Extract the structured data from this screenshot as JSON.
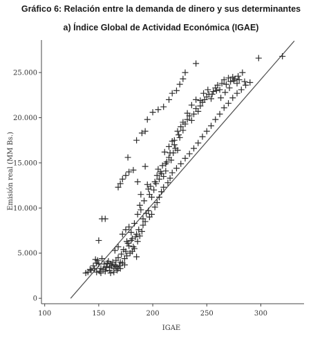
{
  "titles": {
    "main": "Gráfico 6: Relación entre la demanda de dinero y sus determinantes",
    "sub": "a) Índice Global de Actividad Económica (IGAE)"
  },
  "colors": {
    "marker": "#2b2b2b",
    "line": "#555555",
    "axis": "#444444",
    "text": "#333333"
  },
  "chart_data": {
    "type": "scatter",
    "xlabel": "IGAE",
    "ylabel": "Emisión real (MM Bs.)",
    "xlim": [
      97,
      340
    ],
    "ylim": [
      -600,
      28600
    ],
    "x_ticks": [
      100,
      150,
      200,
      250,
      300
    ],
    "y_ticks": [
      0,
      5000,
      10000,
      15000,
      20000,
      25000
    ],
    "x_tick_labels": [
      "100",
      "150",
      "200",
      "250",
      "300"
    ],
    "y_tick_labels": [
      "0",
      "5.000",
      "10.000",
      "15.000",
      "20.000",
      "25.000"
    ],
    "grid": false,
    "legend": "none",
    "marker": "plus",
    "fit_line": {
      "points": [
        [
          124,
          0
        ],
        [
          331,
          28500
        ]
      ]
    },
    "points": [
      [
        138,
        2800
      ],
      [
        140,
        2900
      ],
      [
        142,
        3200
      ],
      [
        143,
        3100
      ],
      [
        145,
        3600
      ],
      [
        146,
        3300
      ],
      [
        148,
        3900
      ],
      [
        147,
        4300
      ],
      [
        149,
        4200
      ],
      [
        150,
        3800
      ],
      [
        151,
        3000
      ],
      [
        152,
        3300
      ],
      [
        153,
        4400
      ],
      [
        154,
        3200
      ],
      [
        155,
        3800
      ],
      [
        156,
        3000
      ],
      [
        157,
        3500
      ],
      [
        158,
        3900
      ],
      [
        159,
        4100
      ],
      [
        160,
        3400
      ],
      [
        161,
        2800
      ],
      [
        162,
        3600
      ],
      [
        163,
        4000
      ],
      [
        164,
        3300
      ],
      [
        165,
        3700
      ],
      [
        166,
        4200
      ],
      [
        167,
        3100
      ],
      [
        168,
        4500
      ],
      [
        169,
        3600
      ],
      [
        170,
        3300
      ],
      [
        172,
        3900
      ],
      [
        174,
        3700
      ],
      [
        171,
        4900
      ],
      [
        173,
        5400
      ],
      [
        168,
        5700
      ],
      [
        165,
        5300
      ],
      [
        175,
        5200
      ],
      [
        176,
        6300
      ],
      [
        178,
        5800
      ],
      [
        180,
        6400
      ],
      [
        182,
        5700
      ],
      [
        184,
        6800
      ],
      [
        186,
        6300
      ],
      [
        188,
        6900
      ],
      [
        185,
        4600
      ],
      [
        190,
        7400
      ],
      [
        178,
        7900
      ],
      [
        183,
        8300
      ],
      [
        180,
        7300
      ],
      [
        175,
        7600
      ],
      [
        172,
        7100
      ],
      [
        150,
        6400
      ],
      [
        153,
        8800
      ],
      [
        156,
        8800
      ],
      [
        186,
        9300
      ],
      [
        189,
        9800
      ],
      [
        191,
        8800
      ],
      [
        194,
        9400
      ],
      [
        196,
        9700
      ],
      [
        188,
        10300
      ],
      [
        192,
        10800
      ],
      [
        197,
        11500
      ],
      [
        199,
        11200
      ],
      [
        201,
        12000
      ],
      [
        195,
        12600
      ],
      [
        198,
        12400
      ],
      [
        202,
        12900
      ],
      [
        204,
        13600
      ],
      [
        206,
        13200
      ],
      [
        208,
        13800
      ],
      [
        210,
        13500
      ],
      [
        212,
        14100
      ],
      [
        205,
        14300
      ],
      [
        209,
        14700
      ],
      [
        213,
        15100
      ],
      [
        215,
        15600
      ],
      [
        217,
        15300
      ],
      [
        211,
        16200
      ],
      [
        219,
        16100
      ],
      [
        221,
        16600
      ],
      [
        223,
        16400
      ],
      [
        215,
        16800
      ],
      [
        218,
        17400
      ],
      [
        220,
        17000
      ],
      [
        225,
        17800
      ],
      [
        223,
        18500
      ],
      [
        226,
        19000
      ],
      [
        228,
        18600
      ],
      [
        230,
        19300
      ],
      [
        232,
        19800
      ],
      [
        234,
        20200
      ],
      [
        236,
        19700
      ],
      [
        238,
        20400
      ],
      [
        240,
        21000
      ],
      [
        242,
        20700
      ],
      [
        244,
        21300
      ],
      [
        246,
        21700
      ],
      [
        248,
        22000
      ],
      [
        250,
        22300
      ],
      [
        252,
        22600
      ],
      [
        254,
        22100
      ],
      [
        256,
        22900
      ],
      [
        258,
        23300
      ],
      [
        260,
        23600
      ],
      [
        262,
        23100
      ],
      [
        264,
        23800
      ],
      [
        266,
        24200
      ],
      [
        268,
        23700
      ],
      [
        270,
        24400
      ],
      [
        272,
        24000
      ],
      [
        274,
        24500
      ],
      [
        276,
        24300
      ],
      [
        278,
        23800
      ],
      [
        280,
        24200
      ],
      [
        283,
        25000
      ],
      [
        285,
        24000
      ],
      [
        290,
        23900
      ],
      [
        298,
        26600
      ],
      [
        320,
        26800
      ],
      [
        240,
        26000
      ],
      [
        230,
        25000
      ],
      [
        228,
        24300
      ],
      [
        225,
        23700
      ],
      [
        222,
        23000
      ],
      [
        218,
        22700
      ],
      [
        215,
        22000
      ],
      [
        210,
        21200
      ],
      [
        205,
        20900
      ],
      [
        200,
        20600
      ],
      [
        195,
        19800
      ],
      [
        190,
        18300
      ],
      [
        193,
        18500
      ],
      [
        185,
        17500
      ],
      [
        182,
        14200
      ],
      [
        178,
        14000
      ],
      [
        175,
        13600
      ],
      [
        172,
        13200
      ],
      [
        170,
        12700
      ],
      [
        168,
        12300
      ],
      [
        177,
        15600
      ],
      [
        186,
        12900
      ],
      [
        193,
        14600
      ],
      [
        189,
        11500
      ],
      [
        196,
        12100
      ],
      [
        203,
        12700
      ],
      [
        207,
        14000
      ],
      [
        212,
        14900
      ],
      [
        216,
        16100
      ],
      [
        220,
        17500
      ],
      [
        224,
        18100
      ],
      [
        228,
        19500
      ],
      [
        232,
        20500
      ],
      [
        236,
        21400
      ],
      [
        240,
        22000
      ],
      [
        244,
        21900
      ],
      [
        247,
        22700
      ],
      [
        251,
        23100
      ],
      [
        255,
        22600
      ],
      [
        259,
        23000
      ],
      [
        263,
        22200
      ],
      [
        267,
        22800
      ],
      [
        271,
        23300
      ],
      [
        275,
        24100
      ],
      [
        279,
        24600
      ],
      [
        148,
        2900
      ],
      [
        152,
        2800
      ],
      [
        156,
        3000
      ],
      [
        160,
        3100
      ],
      [
        164,
        2900
      ],
      [
        168,
        3300
      ],
      [
        157,
        3400
      ],
      [
        161,
        3800
      ],
      [
        166,
        3500
      ],
      [
        170,
        4000
      ],
      [
        174,
        4400
      ],
      [
        176,
        4700
      ],
      [
        179,
        5000
      ],
      [
        181,
        5200
      ],
      [
        183,
        5500
      ],
      [
        177,
        6100
      ],
      [
        181,
        6600
      ],
      [
        185,
        7100
      ],
      [
        187,
        7600
      ],
      [
        191,
        8100
      ],
      [
        193,
        8500
      ],
      [
        197,
        9000
      ],
      [
        199,
        9300
      ],
      [
        202,
        10100
      ],
      [
        204,
        10600
      ],
      [
        206,
        11200
      ],
      [
        208,
        11800
      ],
      [
        210,
        12300
      ],
      [
        214,
        12800
      ],
      [
        216,
        13300
      ],
      [
        218,
        13900
      ],
      [
        222,
        14400
      ],
      [
        226,
        14900
      ],
      [
        230,
        15500
      ],
      [
        234,
        16000
      ],
      [
        238,
        16600
      ],
      [
        242,
        17200
      ],
      [
        246,
        17900
      ],
      [
        250,
        18500
      ],
      [
        254,
        19100
      ],
      [
        258,
        19800
      ],
      [
        262,
        20400
      ],
      [
        266,
        21100
      ],
      [
        270,
        21600
      ],
      [
        274,
        22200
      ],
      [
        278,
        22700
      ],
      [
        282,
        23100
      ],
      [
        286,
        23600
      ]
    ]
  }
}
